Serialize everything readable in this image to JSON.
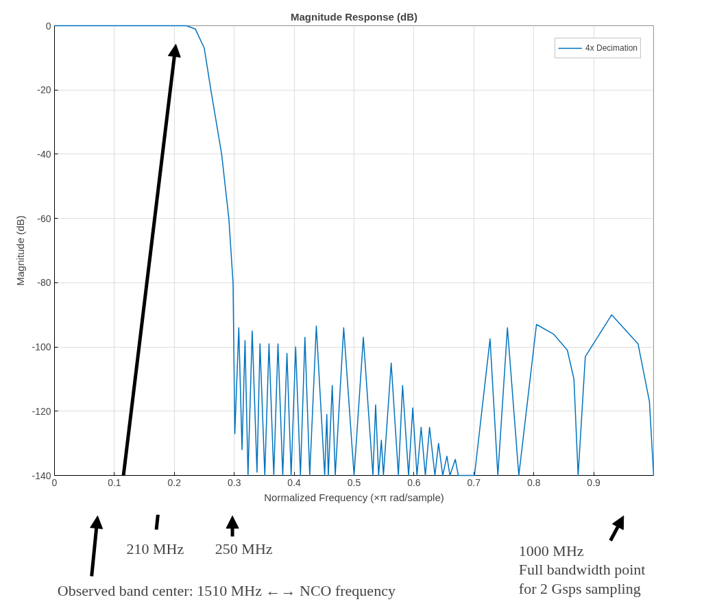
{
  "chart_data": {
    "type": "line",
    "title": "Magnitude Response (dB)",
    "xlabel": "Normalized Frequency (×π rad/sample)",
    "ylabel": "Magnitude (dB)",
    "xlim": [
      0,
      1
    ],
    "xticks": [
      0,
      0.1,
      0.2,
      0.3,
      0.4,
      0.5,
      0.6,
      0.7,
      0.8,
      0.9
    ],
    "ylim": [
      -140,
      0
    ],
    "yticks": [
      -140,
      -120,
      -100,
      -80,
      -60,
      -40,
      -20,
      0
    ],
    "grid": true,
    "legend": "top right",
    "line_style": "solid",
    "series": [
      {
        "name": "4x Decimation",
        "color": "#0072bd",
        "x": [
          0,
          0.2,
          0.22,
          0.235,
          0.25,
          0.261,
          0.279,
          0.291,
          0.298,
          0.301,
          0.3076,
          0.313,
          0.318,
          0.323,
          0.33,
          0.338,
          0.343,
          0.351,
          0.358,
          0.366,
          0.373,
          0.381,
          0.388,
          0.395,
          0.4025,
          0.4105,
          0.418,
          0.426,
          0.437,
          0.451,
          0.4545,
          0.457,
          0.4636,
          0.4686,
          0.4827,
          0.5,
          0.5155,
          0.5315,
          0.536,
          0.541,
          0.5456,
          0.549,
          0.562,
          0.574,
          0.581,
          0.591,
          0.598,
          0.605,
          0.612,
          0.619,
          0.626,
          0.635,
          0.641,
          0.648,
          0.655,
          0.66,
          0.669,
          0.674,
          0.701,
          0.727,
          0.74,
          0.756,
          0.775,
          0.8045,
          0.833,
          0.856,
          0.867,
          0.874,
          0.886,
          0.93,
          0.974,
          0.993,
          1.0
        ],
        "values": [
          0,
          0,
          0,
          -1,
          -7,
          -20,
          -40,
          -60,
          -80,
          -127,
          -94,
          -132,
          -98,
          -140,
          -95,
          -139,
          -99,
          -140,
          -99,
          -140,
          -99,
          -140,
          -102,
          -140,
          -100,
          -140,
          -97,
          -140,
          -93.5,
          -140,
          -121,
          -140,
          -112,
          -140,
          -94,
          -140,
          -97,
          -140,
          -118,
          -140,
          -129,
          -140,
          -105,
          -140,
          -112,
          -140,
          -119,
          -140,
          -125,
          -140,
          -125,
          -140,
          -130,
          -140,
          -134,
          -140,
          -135,
          -140,
          -140,
          -97.5,
          -140,
          -94,
          -140,
          -93,
          -96,
          -101,
          -110,
          -140,
          -103,
          -90,
          -99,
          -117,
          -140
        ]
      }
    ],
    "annotations": [
      "210 MHz",
      "250 MHz",
      "1000 MHz\nFull bandwidth point\nfor 2 Gsps sampling",
      "Observed band center: 1510 MHz ←→ NCO frequency"
    ]
  }
}
